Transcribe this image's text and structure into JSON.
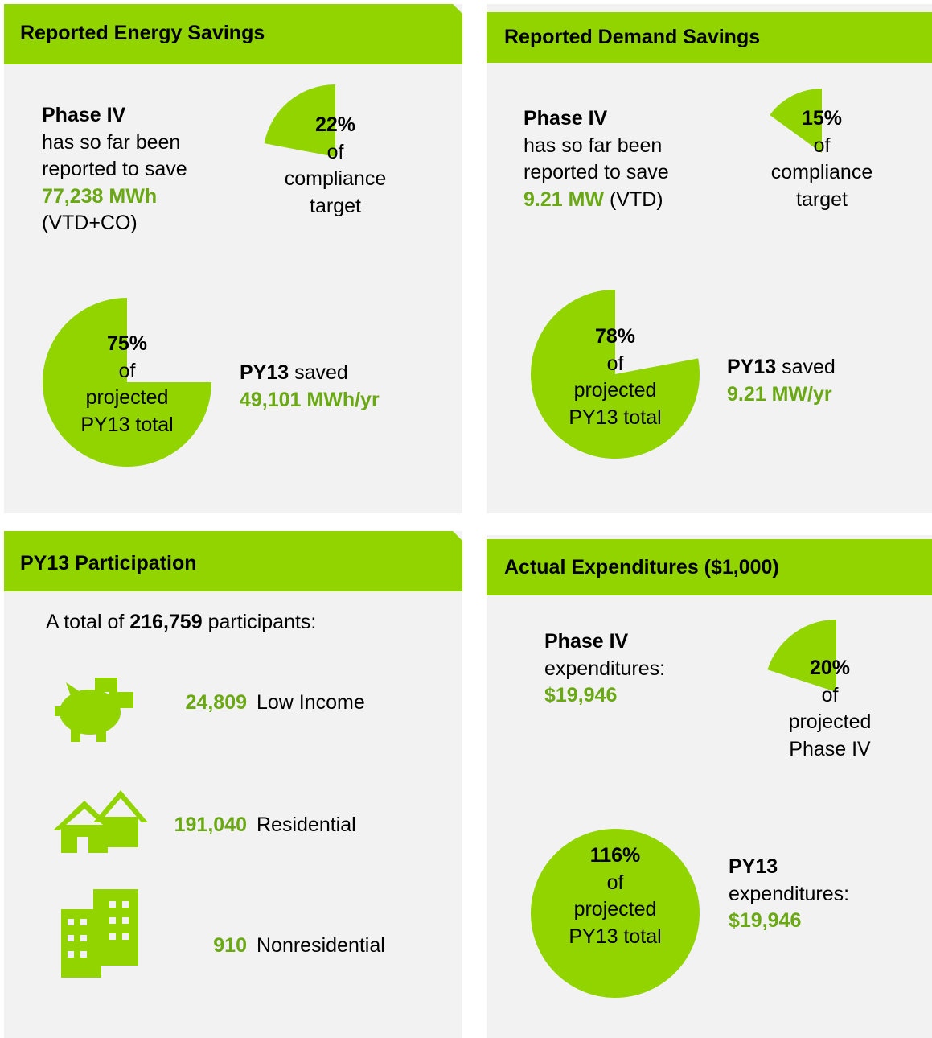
{
  "energy": {
    "title": "Reported Energy Savings",
    "phase": "Phase IV",
    "lines": [
      "has so far been",
      "reported to save"
    ],
    "amount": "77,238 MWh",
    "note": "(VTD+CO)",
    "target": {
      "value": 22,
      "label": "22%"
    },
    "target_caption": [
      "of",
      "compliance",
      "target"
    ],
    "py_share": {
      "value": 75,
      "label": "75%"
    },
    "py_caption": [
      "of",
      "projected",
      "PY13 total"
    ],
    "py_label": "PY13",
    "py_verb": "saved",
    "py_amount": "49,101 MWh/yr"
  },
  "demand": {
    "title": "Reported Demand Savings",
    "phase": "Phase IV",
    "lines": [
      "has so far been",
      "reported to save"
    ],
    "amount": "9.21 MW",
    "note": "(VTD)",
    "target": {
      "value": 15,
      "label": "15%"
    },
    "target_caption": [
      "of",
      "compliance",
      "target"
    ],
    "py_share": {
      "value": 78,
      "label": "78%"
    },
    "py_caption": [
      "of",
      "projected",
      "PY13 total"
    ],
    "py_label": "PY13",
    "py_verb": "saved",
    "py_amount": "9.21 MW/yr"
  },
  "participation": {
    "title": "PY13 Participation",
    "intro_prefix": "A total of",
    "total": "216,759",
    "intro_suffix": "participants:",
    "groups": [
      {
        "count": "24,809",
        "label": "Low Income"
      },
      {
        "count": "191,040",
        "label": "Residential"
      },
      {
        "count": "910",
        "label": "Nonresidential"
      }
    ]
  },
  "expenditures": {
    "title": "Actual Expenditures ($1,000)",
    "phase": "Phase IV",
    "phase_caption": "expenditures:",
    "phase_amount": "$19,946",
    "share": {
      "value": 20,
      "label": "20%"
    },
    "share_caption": [
      "of",
      "projected",
      "Phase IV"
    ],
    "py_share": {
      "value": 116,
      "label": "116%"
    },
    "py_caption": [
      "of",
      "projected",
      "PY13 total"
    ],
    "py_label": "PY13",
    "py_caption2": "expenditures:",
    "py_amount": "$19,946"
  }
}
